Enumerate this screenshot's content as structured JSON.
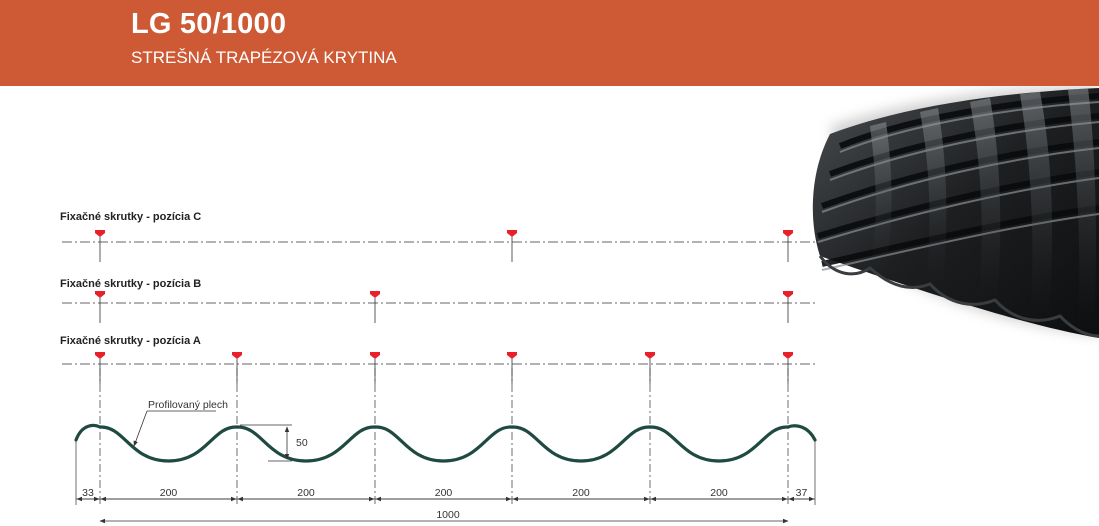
{
  "header": {
    "title": "LG 50/1000",
    "subtitle": "STREŠNÁ TRAPÉZOVÁ KRYTINA"
  },
  "rows": [
    {
      "label": "Fixačné skrutky - pozícia C",
      "screws": [
        0,
        3,
        5
      ]
    },
    {
      "label": "Fixačné skrutky - pozícia B",
      "screws": [
        0,
        2,
        5
      ]
    },
    {
      "label": "Fixačné skrutky - pozícia A",
      "screws": [
        0,
        1,
        2,
        3,
        4,
        5
      ]
    }
  ],
  "profile": {
    "label": "Profilovaný plech",
    "height_label": "50"
  },
  "dimensions": {
    "segments": [
      "33",
      "200",
      "200",
      "200",
      "200",
      "200",
      "37"
    ],
    "total": "1000"
  },
  "colors": {
    "header": "#cd5a34",
    "profile": "#1f4a41",
    "screw": "#e8202a",
    "line": "#333333",
    "tile": "#1a1c1e"
  }
}
